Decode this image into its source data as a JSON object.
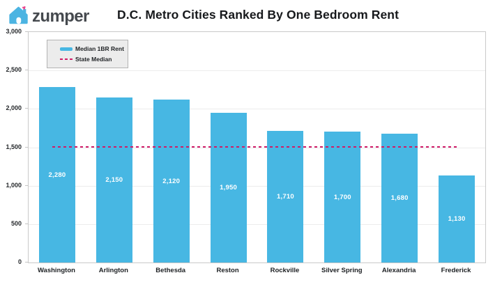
{
  "logo": {
    "brand": "zumper",
    "house_color": "#4cb4e2",
    "heart_color": "#e8478f"
  },
  "header": {
    "title": "D.C. Metro Cities Ranked By One Bedroom Rent"
  },
  "legend": {
    "items": [
      {
        "label": "Median 1BR Rent",
        "type": "bar-swatch"
      },
      {
        "label": "State Median",
        "type": "dashed-line-swatch"
      }
    ]
  },
  "chart_data": {
    "type": "bar",
    "title": "D.C. Metro Cities Ranked By One Bedroom Rent",
    "categories": [
      "Washington",
      "Arlington",
      "Bethesda",
      "Reston",
      "Rockville",
      "Silver Spring",
      "Alexandria",
      "Frederick"
    ],
    "values": [
      2280,
      2150,
      2120,
      1950,
      1710,
      1700,
      1680,
      1130
    ],
    "bar_value_labels": [
      "2,280",
      "2,150",
      "2,120",
      "1,950",
      "1,710",
      "1,700",
      "1,680",
      "1,130"
    ],
    "series_name": "Median 1BR Rent",
    "reference_line": {
      "label": "State Median",
      "value": 1500
    },
    "xlabel": "",
    "ylabel": "",
    "ylim": [
      0,
      3000
    ],
    "y_ticks": [
      "3,000",
      "2,500",
      "2,000",
      "1,500",
      "1,000",
      "500",
      "0"
    ],
    "y_tick_values": [
      3000,
      2500,
      2000,
      1500,
      1000,
      500,
      0
    ],
    "grid": true,
    "legend_position": "top-left",
    "colors": {
      "bar": "#47b7e3",
      "reference_line": "#cf1b67"
    }
  }
}
